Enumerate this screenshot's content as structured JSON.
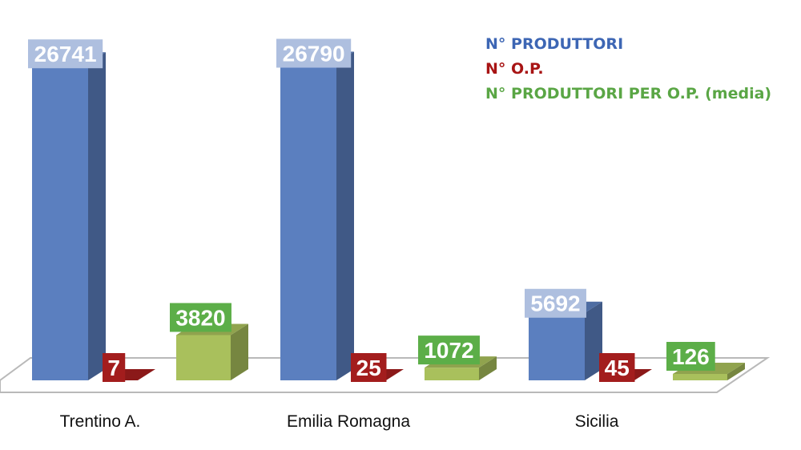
{
  "chart_data": {
    "type": "bar",
    "categories": [
      "Trentino A.",
      "Emilia Romagna",
      "Sicilia"
    ],
    "series": [
      {
        "name": "N° PRODUTTORI",
        "values": [
          26741,
          26790,
          5692
        ],
        "color": "#5b7fbf",
        "label_bg": "#aebfdf"
      },
      {
        "name": "N° O.P.",
        "values": [
          7,
          25,
          45
        ],
        "color": "#a31d1d",
        "label_bg": "#a31d1d"
      },
      {
        "name": "N° PRODUTTORI PER O.P. (media)",
        "values": [
          3820,
          1072,
          126
        ],
        "color": "#a9c05c",
        "label_bg": "#5cae48"
      }
    ],
    "legend_position": "top-right",
    "grid": false,
    "style": "3d-columns"
  },
  "legend": {
    "colors": [
      "#3d66b4",
      "#a81414",
      "#5aa645"
    ]
  }
}
